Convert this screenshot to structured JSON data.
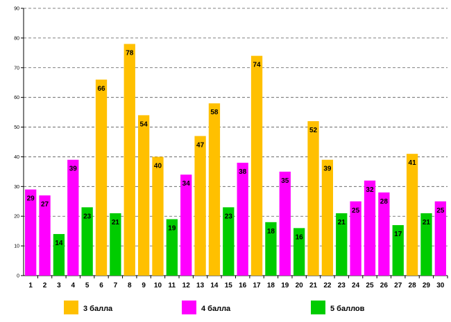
{
  "chart_data": {
    "type": "bar",
    "title": "",
    "xlabel": "",
    "ylabel": "",
    "ylim": [
      0,
      90
    ],
    "yticks": [
      0,
      10,
      20,
      30,
      40,
      50,
      60,
      70,
      80,
      90
    ],
    "grid": true,
    "legend_position": "bottom",
    "categories": [
      "1",
      "2",
      "3",
      "4",
      "5",
      "6",
      "7",
      "8",
      "9",
      "10",
      "11",
      "12",
      "13",
      "14",
      "15",
      "16",
      "17",
      "18",
      "19",
      "20",
      "21",
      "22",
      "23",
      "24",
      "25",
      "26",
      "27",
      "28",
      "29",
      "30"
    ],
    "values": [
      29,
      27,
      14,
      39,
      23,
      66,
      21,
      78,
      54,
      40,
      19,
      34,
      47,
      58,
      23,
      38,
      74,
      18,
      35,
      16,
      52,
      39,
      21,
      25,
      32,
      28,
      17,
      41,
      21,
      25
    ],
    "grades": [
      4,
      4,
      5,
      4,
      5,
      3,
      5,
      3,
      3,
      3,
      5,
      4,
      3,
      3,
      5,
      4,
      3,
      5,
      4,
      5,
      3,
      3,
      5,
      4,
      4,
      4,
      5,
      3,
      5,
      4
    ],
    "legend": [
      {
        "grade": 3,
        "label": "3 балла",
        "color": "#FFC000"
      },
      {
        "grade": 4,
        "label": "4 балла",
        "color": "#FF00FF"
      },
      {
        "grade": 5,
        "label": "5 баллов",
        "color": "#00CC00"
      }
    ]
  }
}
